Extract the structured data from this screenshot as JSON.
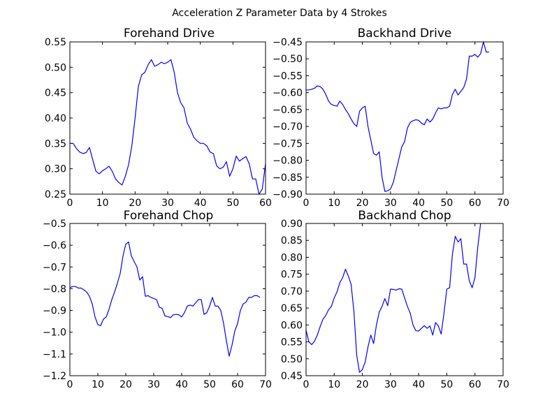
{
  "figure": {
    "title": "Acceleration Z Parameter Data by 4 Strokes",
    "line_color": "#0000ff"
  },
  "chart_data": [
    {
      "type": "line",
      "title": "Forehand Drive",
      "xlabel": "",
      "ylabel": "",
      "xlim": [
        0,
        60
      ],
      "ylim": [
        0.25,
        0.55
      ],
      "xticks": [
        0,
        10,
        20,
        30,
        40,
        50,
        60
      ],
      "xtick_labels": [
        "0",
        "10",
        "20",
        "30",
        "40",
        "50",
        "60"
      ],
      "yticks": [
        0.25,
        0.3,
        0.35,
        0.4,
        0.45,
        0.5,
        0.55
      ],
      "ytick_labels": [
        "0.25",
        "0.30",
        "0.35",
        "0.40",
        "0.45",
        "0.50",
        "0.55"
      ],
      "grid": false,
      "series": [
        {
          "x": [
            0,
            1,
            2,
            3,
            4,
            5,
            6,
            7,
            8,
            9,
            10,
            11,
            12,
            13,
            14,
            15,
            16,
            17,
            18,
            19,
            20,
            21,
            22,
            23,
            24,
            25,
            26,
            27,
            28,
            29,
            30,
            31,
            32,
            33,
            34,
            35,
            36,
            37,
            38,
            39,
            40,
            41,
            42,
            43,
            44,
            45,
            46,
            47,
            48,
            49,
            50,
            51,
            52,
            53,
            54,
            55,
            56,
            57,
            58,
            59,
            60
          ],
          "y": [
            0.35,
            0.35,
            0.34,
            0.333,
            0.33,
            0.332,
            0.342,
            0.318,
            0.295,
            0.29,
            0.296,
            0.3,
            0.305,
            0.295,
            0.28,
            0.273,
            0.268,
            0.285,
            0.308,
            0.345,
            0.4,
            0.462,
            0.485,
            0.49,
            0.505,
            0.515,
            0.502,
            0.505,
            0.51,
            0.507,
            0.51,
            0.515,
            0.49,
            0.45,
            0.43,
            0.42,
            0.39,
            0.378,
            0.362,
            0.355,
            0.35,
            0.35,
            0.345,
            0.333,
            0.33,
            0.306,
            0.3,
            0.303,
            0.314,
            0.285,
            0.3,
            0.325,
            0.315,
            0.32,
            0.324,
            0.31,
            0.28,
            0.28,
            0.25,
            0.26,
            0.31
          ]
        }
      ]
    },
    {
      "type": "line",
      "title": "Backhand Drive",
      "xlabel": "",
      "ylabel": "",
      "xlim": [
        0,
        70
      ],
      "ylim": [
        -0.9,
        -0.45
      ],
      "xticks": [
        0,
        10,
        20,
        30,
        40,
        50,
        60,
        70
      ],
      "xtick_labels": [
        "0",
        "10",
        "20",
        "30",
        "40",
        "50",
        "60",
        "70"
      ],
      "yticks": [
        -0.9,
        -0.85,
        -0.8,
        -0.75,
        -0.7,
        -0.65,
        -0.6,
        -0.55,
        -0.5,
        -0.45
      ],
      "ytick_labels": [
        "−0.90",
        "−0.85",
        "−0.80",
        "−0.75",
        "−0.70",
        "−0.65",
        "−0.60",
        "−0.55",
        "−0.50",
        "−0.45"
      ],
      "grid": false,
      "series": [
        {
          "x": [
            0,
            1,
            2,
            3,
            4,
            5,
            6,
            7,
            8,
            9,
            10,
            11,
            12,
            13,
            14,
            15,
            16,
            17,
            18,
            19,
            20,
            21,
            22,
            23,
            24,
            25,
            26,
            27,
            28,
            29,
            30,
            31,
            32,
            33,
            34,
            35,
            36,
            37,
            38,
            39,
            40,
            41,
            42,
            43,
            44,
            45,
            46,
            47,
            48,
            49,
            50,
            51,
            52,
            53,
            54,
            55,
            56,
            57,
            58,
            59,
            60,
            61,
            62,
            63,
            64,
            65
          ],
          "y": [
            -0.592,
            -0.592,
            -0.59,
            -0.587,
            -0.58,
            -0.582,
            -0.59,
            -0.605,
            -0.625,
            -0.635,
            -0.638,
            -0.64,
            -0.625,
            -0.635,
            -0.65,
            -0.662,
            -0.678,
            -0.692,
            -0.7,
            -0.655,
            -0.645,
            -0.64,
            -0.7,
            -0.74,
            -0.78,
            -0.785,
            -0.775,
            -0.85,
            -0.892,
            -0.89,
            -0.885,
            -0.865,
            -0.83,
            -0.795,
            -0.76,
            -0.745,
            -0.705,
            -0.688,
            -0.683,
            -0.68,
            -0.682,
            -0.69,
            -0.695,
            -0.678,
            -0.687,
            -0.678,
            -0.66,
            -0.645,
            -0.648,
            -0.645,
            -0.645,
            -0.64,
            -0.605,
            -0.59,
            -0.607,
            -0.596,
            -0.585,
            -0.56,
            -0.492,
            -0.492,
            -0.487,
            -0.495,
            -0.485,
            -0.45,
            -0.48,
            -0.48
          ]
        }
      ]
    },
    {
      "type": "line",
      "title": "Forehand Chop",
      "xlabel": "",
      "ylabel": "",
      "xlim": [
        0,
        70
      ],
      "ylim": [
        -1.2,
        -0.5
      ],
      "xticks": [
        0,
        10,
        20,
        30,
        40,
        50,
        60,
        70
      ],
      "xtick_labels": [
        "0",
        "10",
        "20",
        "30",
        "40",
        "50",
        "60",
        "70"
      ],
      "yticks": [
        -1.2,
        -1.1,
        -1.0,
        -0.9,
        -0.8,
        -0.7,
        -0.6,
        -0.5
      ],
      "ytick_labels": [
        "−1.2",
        "−1.1",
        "−1.0",
        "−0.9",
        "−0.8",
        "−0.7",
        "−0.6",
        "−0.5"
      ],
      "grid": false,
      "series": [
        {
          "x": [
            0,
            1,
            2,
            3,
            4,
            5,
            6,
            7,
            8,
            9,
            10,
            11,
            12,
            13,
            14,
            15,
            16,
            17,
            18,
            19,
            20,
            21,
            22,
            23,
            24,
            25,
            26,
            27,
            28,
            29,
            30,
            31,
            32,
            33,
            34,
            35,
            36,
            37,
            38,
            39,
            40,
            41,
            42,
            43,
            44,
            45,
            46,
            47,
            48,
            49,
            50,
            51,
            52,
            53,
            54,
            55,
            56,
            57,
            58,
            59,
            60,
            61,
            62,
            63,
            64,
            65,
            66,
            67,
            68
          ],
          "y": [
            -0.795,
            -0.79,
            -0.79,
            -0.797,
            -0.797,
            -0.805,
            -0.815,
            -0.835,
            -0.87,
            -0.93,
            -0.965,
            -0.97,
            -0.94,
            -0.93,
            -0.895,
            -0.85,
            -0.815,
            -0.775,
            -0.73,
            -0.65,
            -0.595,
            -0.585,
            -0.65,
            -0.675,
            -0.7,
            -0.76,
            -0.745,
            -0.835,
            -0.832,
            -0.84,
            -0.845,
            -0.85,
            -0.885,
            -0.89,
            -0.925,
            -0.928,
            -0.933,
            -0.92,
            -0.918,
            -0.92,
            -0.93,
            -0.91,
            -0.88,
            -0.875,
            -0.88,
            -0.865,
            -0.85,
            -0.85,
            -0.918,
            -0.91,
            -0.88,
            -0.84,
            -0.88,
            -0.88,
            -0.9,
            -0.96,
            -1.04,
            -1.11,
            -1.06,
            -0.995,
            -0.96,
            -0.9,
            -0.87,
            -0.862,
            -0.84,
            -0.84,
            -0.832,
            -0.832,
            -0.84
          ]
        }
      ]
    },
    {
      "type": "line",
      "title": "Backhand Chop",
      "xlabel": "",
      "ylabel": "",
      "xlim": [
        0,
        70
      ],
      "ylim": [
        0.45,
        0.9
      ],
      "xticks": [
        0,
        10,
        20,
        30,
        40,
        50,
        60,
        70
      ],
      "xtick_labels": [
        "0",
        "10",
        "20",
        "30",
        "40",
        "50",
        "60",
        "70"
      ],
      "yticks": [
        0.45,
        0.5,
        0.55,
        0.6,
        0.65,
        0.7,
        0.75,
        0.8,
        0.85,
        0.9
      ],
      "ytick_labels": [
        "0.45",
        "0.50",
        "0.55",
        "0.60",
        "0.65",
        "0.70",
        "0.75",
        "0.80",
        "0.85",
        "0.90"
      ],
      "grid": false,
      "series": [
        {
          "x": [
            0,
            1,
            2,
            3,
            4,
            5,
            6,
            7,
            8,
            9,
            10,
            11,
            12,
            13,
            14,
            15,
            16,
            17,
            18,
            19,
            20,
            21,
            22,
            23,
            24,
            25,
            26,
            27,
            28,
            29,
            30,
            31,
            32,
            33,
            34,
            35,
            36,
            37,
            38,
            39,
            40,
            41,
            42,
            43,
            44,
            45,
            46,
            47,
            48,
            49,
            50,
            51,
            52,
            53,
            54,
            55,
            56,
            57,
            58,
            59,
            60,
            61,
            62
          ],
          "y": [
            0.585,
            0.55,
            0.542,
            0.552,
            0.57,
            0.595,
            0.617,
            0.628,
            0.645,
            0.655,
            0.68,
            0.698,
            0.725,
            0.74,
            0.765,
            0.745,
            0.72,
            0.64,
            0.51,
            0.46,
            0.468,
            0.49,
            0.535,
            0.57,
            0.545,
            0.6,
            0.638,
            0.655,
            0.678,
            0.657,
            0.706,
            0.705,
            0.703,
            0.707,
            0.706,
            0.68,
            0.655,
            0.635,
            0.6,
            0.583,
            0.582,
            0.59,
            0.598,
            0.59,
            0.597,
            0.57,
            0.607,
            0.597,
            0.573,
            0.635,
            0.706,
            0.71,
            0.81,
            0.862,
            0.845,
            0.855,
            0.78,
            0.78,
            0.73,
            0.71,
            0.74,
            0.83,
            0.9
          ]
        }
      ]
    }
  ]
}
